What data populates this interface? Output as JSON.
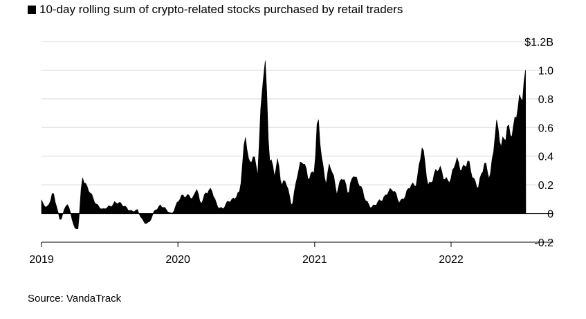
{
  "chart_data": {
    "type": "area",
    "legend": [
      {
        "label": "10-day rolling sum of crypto-related stocks purchased by retail traders",
        "color": "#000000"
      }
    ],
    "ylabel": "",
    "xlabel": "",
    "unit_label": "$1.2B",
    "ylim": [
      -0.2,
      1.2
    ],
    "yticks": [
      -0.2,
      0,
      0.2,
      0.4,
      0.6,
      0.8,
      1.0,
      1.2
    ],
    "ytick_labels": [
      "-0.2",
      "0",
      "0.2",
      "0.4",
      "0.6",
      "0.8",
      "1.0",
      "$1.2B"
    ],
    "xlim": [
      "2019-01-01",
      "2022-08-31"
    ],
    "xticks": [
      "2019-01-01",
      "2020-01-01",
      "2021-01-01",
      "2022-01-01"
    ],
    "xtick_labels": [
      "2019",
      "2020",
      "2021",
      "2022"
    ],
    "grid": true,
    "series": [
      {
        "color": "#000000",
        "points": [
          [
            "2019-01-01",
            0.08
          ],
          [
            "2019-01-15",
            0.03
          ],
          [
            "2019-02-01",
            0.16
          ],
          [
            "2019-02-10",
            0.05
          ],
          [
            "2019-02-20",
            -0.06
          ],
          [
            "2019-03-01",
            0.01
          ],
          [
            "2019-03-10",
            0.09
          ],
          [
            "2019-03-20",
            0.0
          ],
          [
            "2019-04-01",
            -0.13
          ],
          [
            "2019-04-10",
            -0.09
          ],
          [
            "2019-04-20",
            0.29
          ],
          [
            "2019-05-01",
            0.18
          ],
          [
            "2019-05-15",
            0.12
          ],
          [
            "2019-06-01",
            0.06
          ],
          [
            "2019-06-15",
            0.02
          ],
          [
            "2019-07-01",
            0.05
          ],
          [
            "2019-07-15",
            0.08
          ],
          [
            "2019-08-01",
            0.06
          ],
          [
            "2019-08-15",
            0.05
          ],
          [
            "2019-09-01",
            0.01
          ],
          [
            "2019-09-15",
            0.02
          ],
          [
            "2019-10-01",
            -0.05
          ],
          [
            "2019-10-15",
            -0.08
          ],
          [
            "2019-11-01",
            0.03
          ],
          [
            "2019-11-15",
            0.06
          ],
          [
            "2019-12-01",
            0.02
          ],
          [
            "2019-12-15",
            0.0
          ],
          [
            "2020-01-01",
            0.08
          ],
          [
            "2020-01-15",
            0.12
          ],
          [
            "2020-02-01",
            0.14
          ],
          [
            "2020-02-10",
            0.09
          ],
          [
            "2020-02-20",
            0.17
          ],
          [
            "2020-03-01",
            0.07
          ],
          [
            "2020-03-15",
            0.15
          ],
          [
            "2020-04-01",
            0.15
          ],
          [
            "2020-04-15",
            0.06
          ],
          [
            "2020-05-01",
            0.03
          ],
          [
            "2020-05-15",
            0.08
          ],
          [
            "2020-06-01",
            0.12
          ],
          [
            "2020-06-15",
            0.14
          ],
          [
            "2020-07-01",
            0.58
          ],
          [
            "2020-07-10",
            0.35
          ],
          [
            "2020-07-20",
            0.41
          ],
          [
            "2020-08-01",
            0.25
          ],
          [
            "2020-08-10",
            0.72
          ],
          [
            "2020-08-20",
            1.23
          ],
          [
            "2020-09-01",
            0.38
          ],
          [
            "2020-09-15",
            0.27
          ],
          [
            "2020-09-25",
            0.4
          ],
          [
            "2020-10-05",
            0.2
          ],
          [
            "2020-10-15",
            0.22
          ],
          [
            "2020-11-01",
            0.05
          ],
          [
            "2020-11-15",
            0.28
          ],
          [
            "2020-12-01",
            0.35
          ],
          [
            "2020-12-15",
            0.27
          ],
          [
            "2021-01-01",
            0.3
          ],
          [
            "2021-01-10",
            0.66
          ],
          [
            "2021-01-20",
            0.38
          ],
          [
            "2021-02-01",
            0.23
          ],
          [
            "2021-02-10",
            0.34
          ],
          [
            "2021-03-01",
            0.15
          ],
          [
            "2021-03-15",
            0.28
          ],
          [
            "2021-04-01",
            0.12
          ],
          [
            "2021-04-15",
            0.3
          ],
          [
            "2021-05-01",
            0.2
          ],
          [
            "2021-05-15",
            0.1
          ],
          [
            "2021-06-01",
            0.05
          ],
          [
            "2021-06-15",
            0.06
          ],
          [
            "2021-07-01",
            0.1
          ],
          [
            "2021-07-15",
            0.16
          ],
          [
            "2021-08-01",
            0.15
          ],
          [
            "2021-08-15",
            0.09
          ],
          [
            "2021-09-01",
            0.12
          ],
          [
            "2021-09-15",
            0.19
          ],
          [
            "2021-10-01",
            0.23
          ],
          [
            "2021-10-15",
            0.45
          ],
          [
            "2021-11-01",
            0.2
          ],
          [
            "2021-11-15",
            0.27
          ],
          [
            "2021-12-01",
            0.3
          ],
          [
            "2021-12-15",
            0.26
          ],
          [
            "2022-01-01",
            0.23
          ],
          [
            "2022-01-15",
            0.37
          ],
          [
            "2022-02-01",
            0.33
          ],
          [
            "2022-02-15",
            0.34
          ],
          [
            "2022-03-01",
            0.25
          ],
          [
            "2022-03-15",
            0.2
          ],
          [
            "2022-04-01",
            0.33
          ],
          [
            "2022-04-15",
            0.26
          ],
          [
            "2022-05-01",
            0.62
          ],
          [
            "2022-05-15",
            0.45
          ],
          [
            "2022-06-01",
            0.64
          ],
          [
            "2022-06-15",
            0.52
          ],
          [
            "2022-07-01",
            0.78
          ],
          [
            "2022-07-15",
            0.95
          ]
        ]
      }
    ]
  },
  "source": "Source: VandaTrack"
}
